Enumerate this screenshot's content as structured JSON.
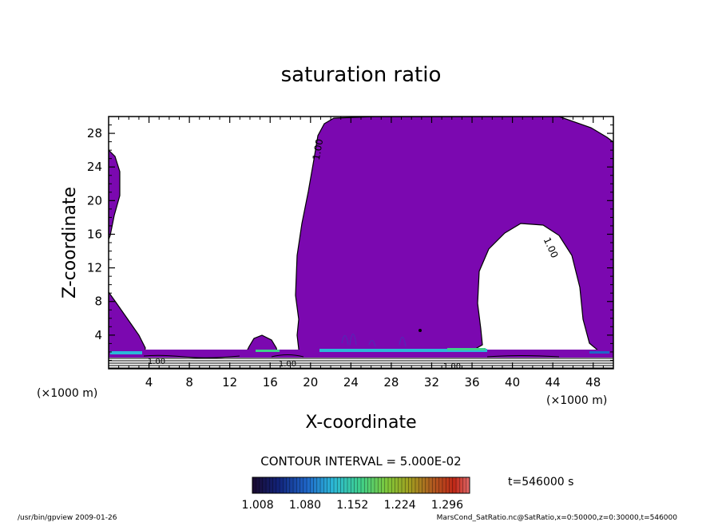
{
  "chart_data": {
    "type": "contour",
    "title": "saturation ratio",
    "xlabel": "X-coordinate",
    "ylabel": "Z-coordinate",
    "x_unit_left": "(×1000 m)",
    "x_unit_right": "(×1000 m)",
    "xlim": [
      0,
      50
    ],
    "ylim": [
      0,
      30
    ],
    "x_ticks": [
      "4",
      "8",
      "12",
      "16",
      "20",
      "24",
      "28",
      "32",
      "36",
      "40",
      "44",
      "48"
    ],
    "y_ticks": [
      "4",
      "8",
      "12",
      "16",
      "20",
      "24",
      "28"
    ],
    "contour_labels": [
      "1.00",
      "1.00",
      "1.00",
      "1.00",
      "1.00"
    ],
    "contour_interval_text": "CONTOUR INTERVAL = 5.000E-02",
    "time_text": "t=546000 s",
    "colorbar": {
      "tick_labels": [
        "1.008",
        "1.080",
        "1.152",
        "1.224",
        "1.296"
      ],
      "colors": [
        "#1a0a2e",
        "#12237a",
        "#1f66c8",
        "#2bb8d8",
        "#3fd08a",
        "#7fc83a",
        "#a0a020",
        "#b05a20",
        "#c02818",
        "#e06a6a"
      ]
    },
    "fill_color": "#7b08b0",
    "footer_left": "/usr/bin/gpview   2009-01-26",
    "footer_right": "MarsCond_SatRatio.nc@SatRatio,x=0:50000,z=0:30000,t=546000"
  }
}
